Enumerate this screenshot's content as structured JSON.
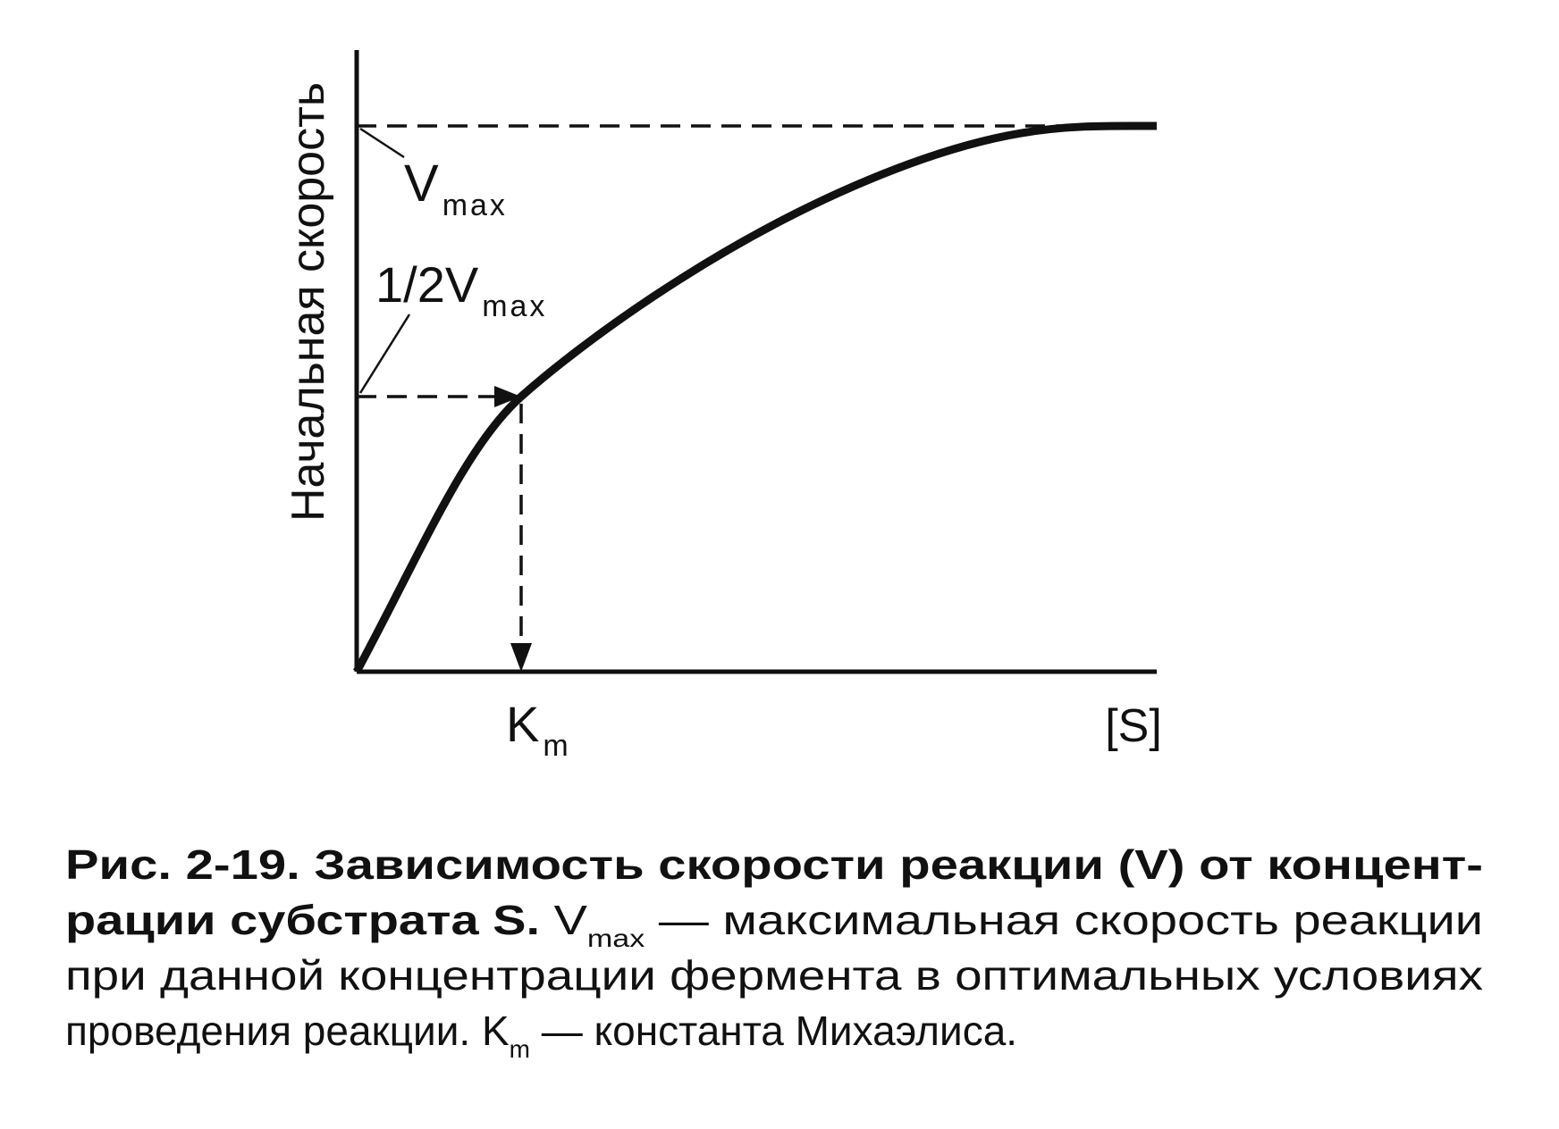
{
  "axes": {
    "y_label": "Начальная скорость",
    "x_label": "[S]"
  },
  "annotations": {
    "vmax": {
      "main": "V",
      "sub": "max"
    },
    "half_vmax": {
      "main": "1/2V",
      "sub": "max"
    },
    "km": {
      "main": "K",
      "sub": "m"
    }
  },
  "caption": {
    "lines": [
      [
        {
          "text": "Рис. 2-19. Зависимость скорости реакции (V) от концент-",
          "style": "bold"
        }
      ],
      [
        {
          "text": "рации субстрата S. ",
          "style": "bold"
        },
        {
          "text": "V",
          "style": "normal"
        },
        {
          "text": "max",
          "style": "sub"
        },
        {
          "text": " — максимальная скорость реакции",
          "style": "normal"
        }
      ],
      [
        {
          "text": "при данной концентрации фермента в оптимальных условиях",
          "style": "normal"
        }
      ],
      [
        {
          "text": "проведения реакции. K",
          "style": "normal"
        },
        {
          "text": "m",
          "style": "sub"
        },
        {
          "text": " — константа Михаэлиса.",
          "style": "normal"
        }
      ]
    ]
  }
}
